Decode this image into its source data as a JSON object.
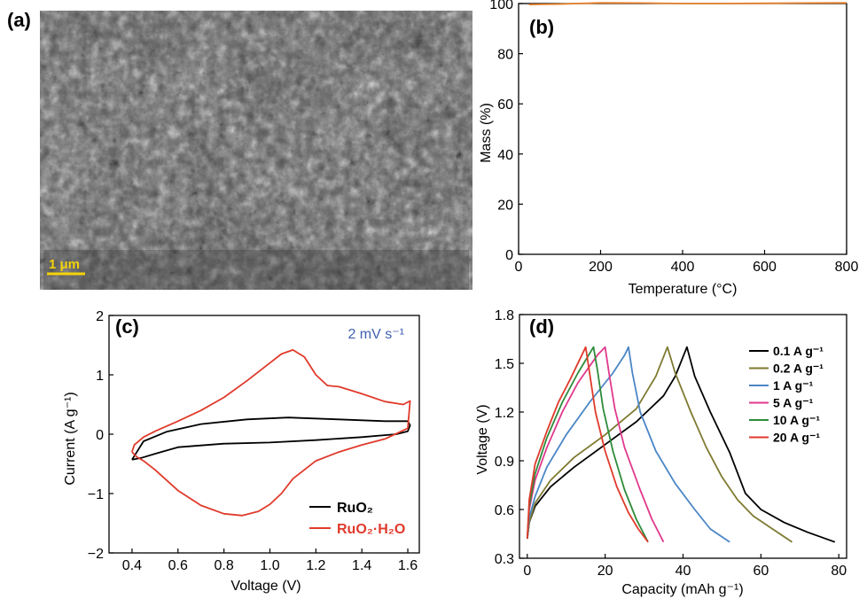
{
  "panels": {
    "a": {
      "label": "(a)",
      "scale_bar": "1 μm"
    },
    "b": {
      "label": "(b)"
    },
    "c": {
      "label": "(c)",
      "annotation": "2 mV s⁻¹"
    },
    "d": {
      "label": "(d)"
    }
  },
  "colors": {
    "tga": "#e8832e",
    "ruo2": "#000000",
    "ruo2h2o": "#e03a2b",
    "annotation": "#3f5fb0",
    "scalebar": "#f4d30b",
    "d_series": [
      "#000000",
      "#7f7a31",
      "#4a86c6",
      "#e0388c",
      "#2e8b3a",
      "#e03a2b"
    ]
  },
  "chart_data": [
    {
      "panel": "b",
      "type": "line",
      "xlabel": "Temperature (°C)",
      "ylabel": "Mass (%)",
      "xlim": [
        0,
        800
      ],
      "ylim": [
        0,
        100
      ],
      "xticks": [
        "0",
        "200",
        "400",
        "600",
        "800"
      ],
      "yticks": [
        "0",
        "20",
        "40",
        "60",
        "80",
        "100"
      ],
      "series": [
        {
          "x": [
            25,
            100,
            200,
            300,
            400,
            500,
            600,
            700,
            800
          ],
          "y": [
            99.6,
            99.8,
            100.3,
            100.2,
            100.0,
            100.0,
            100.1,
            100.2,
            100.3
          ]
        }
      ]
    },
    {
      "panel": "c",
      "type": "line",
      "xlabel": "Voltage (V)",
      "ylabel": "Current (A g⁻¹)",
      "xlim": [
        0.3,
        1.65
      ],
      "ylim": [
        -2,
        2
      ],
      "xticks": [
        "0.4",
        "0.6",
        "0.8",
        "1.0",
        "1.2",
        "1.4",
        "1.6"
      ],
      "yticks": [
        "−2",
        "−1",
        "0",
        "1",
        "2"
      ],
      "legend": {
        "position": "bottom-right",
        "entries": [
          "RuO₂",
          "RuO₂·H₂O"
        ]
      },
      "series": [
        {
          "name": "RuO₂",
          "x": [
            0.4,
            0.45,
            0.55,
            0.7,
            0.9,
            1.08,
            1.3,
            1.5,
            1.6,
            1.61,
            1.6,
            1.55,
            1.4,
            1.2,
            1.0,
            0.8,
            0.6,
            0.5,
            0.44,
            0.4
          ],
          "y": [
            -0.43,
            -0.12,
            0.04,
            0.17,
            0.25,
            0.28,
            0.25,
            0.22,
            0.22,
            0.15,
            0.05,
            0.0,
            -0.05,
            -0.1,
            -0.14,
            -0.16,
            -0.22,
            -0.33,
            -0.4,
            -0.43
          ]
        },
        {
          "name": "RuO₂·H₂O",
          "x": [
            0.4,
            0.41,
            0.45,
            0.5,
            0.6,
            0.7,
            0.8,
            0.9,
            1.0,
            1.05,
            1.1,
            1.15,
            1.2,
            1.25,
            1.3,
            1.4,
            1.5,
            1.58,
            1.61,
            1.6,
            1.5,
            1.4,
            1.3,
            1.2,
            1.1,
            1.05,
            1.0,
            0.95,
            0.88,
            0.8,
            0.7,
            0.6,
            0.5,
            0.45,
            0.42,
            0.4
          ],
          "y": [
            -0.3,
            -0.18,
            -0.05,
            0.05,
            0.22,
            0.4,
            0.62,
            0.9,
            1.2,
            1.35,
            1.42,
            1.3,
            1.0,
            0.82,
            0.8,
            0.68,
            0.55,
            0.5,
            0.56,
            0.1,
            -0.08,
            -0.18,
            -0.3,
            -0.45,
            -0.75,
            -1.0,
            -1.18,
            -1.3,
            -1.37,
            -1.34,
            -1.2,
            -0.95,
            -0.6,
            -0.45,
            -0.38,
            -0.3
          ]
        }
      ]
    },
    {
      "panel": "d",
      "type": "line",
      "xlabel": "Capacity (mAh g⁻¹)",
      "ylabel": "Voltage (V)",
      "xlim": [
        -2,
        82
      ],
      "ylim": [
        0.3,
        1.8
      ],
      "xticks": [
        "0",
        "20",
        "40",
        "60",
        "80"
      ],
      "yticks": [
        "0.3",
        "0.6",
        "0.9",
        "1.2",
        "1.5",
        "1.8"
      ],
      "legend": {
        "position": "top-right"
      },
      "series": [
        {
          "name": "0.1 A g⁻¹",
          "x": [
            0,
            0.5,
            2,
            6,
            12,
            20,
            28,
            35,
            38,
            40,
            41,
            43,
            47,
            52,
            56,
            60,
            66,
            72,
            79
          ],
          "y": [
            0.42,
            0.52,
            0.62,
            0.74,
            0.86,
            1.0,
            1.14,
            1.3,
            1.42,
            1.54,
            1.6,
            1.42,
            1.2,
            0.95,
            0.7,
            0.6,
            0.52,
            0.46,
            0.4
          ]
        },
        {
          "name": "0.2 A g⁻¹",
          "x": [
            0,
            0.5,
            2,
            6,
            12,
            20,
            28,
            33,
            35,
            36,
            38,
            42,
            46,
            50,
            54,
            58,
            63,
            68
          ],
          "y": [
            0.42,
            0.52,
            0.64,
            0.78,
            0.92,
            1.06,
            1.22,
            1.42,
            1.54,
            1.6,
            1.44,
            1.2,
            0.98,
            0.8,
            0.66,
            0.56,
            0.48,
            0.4
          ]
        },
        {
          "name": "1 A g⁻¹",
          "x": [
            0,
            0.5,
            2,
            5,
            10,
            16,
            22,
            25,
            26,
            27,
            29,
            33,
            38,
            43,
            47,
            52
          ],
          "y": [
            0.42,
            0.55,
            0.68,
            0.86,
            1.06,
            1.26,
            1.44,
            1.55,
            1.6,
            1.44,
            1.2,
            0.96,
            0.76,
            0.6,
            0.48,
            0.4
          ]
        },
        {
          "name": "5 A g⁻¹",
          "x": [
            0,
            0.5,
            2,
            5,
            9,
            13,
            18,
            20,
            21,
            22.5,
            25,
            29,
            32,
            35
          ],
          "y": [
            0.42,
            0.6,
            0.78,
            0.98,
            1.2,
            1.38,
            1.55,
            1.6,
            1.44,
            1.22,
            0.98,
            0.72,
            0.54,
            0.4
          ]
        },
        {
          "name": "10 A g⁻¹",
          "x": [
            0,
            0.5,
            2,
            5,
            9,
            13,
            17,
            18,
            19.5,
            22,
            25,
            28,
            31
          ],
          "y": [
            0.42,
            0.62,
            0.82,
            1.04,
            1.26,
            1.44,
            1.6,
            1.46,
            1.22,
            0.96,
            0.72,
            0.54,
            0.4
          ]
        },
        {
          "name": "20 A g⁻¹",
          "x": [
            0,
            0.5,
            2,
            5,
            8,
            11,
            15,
            16,
            17.5,
            20,
            23,
            26,
            28.5,
            31
          ],
          "y": [
            0.42,
            0.66,
            0.88,
            1.08,
            1.26,
            1.4,
            1.6,
            1.44,
            1.2,
            0.96,
            0.74,
            0.58,
            0.48,
            0.4
          ]
        }
      ]
    }
  ]
}
